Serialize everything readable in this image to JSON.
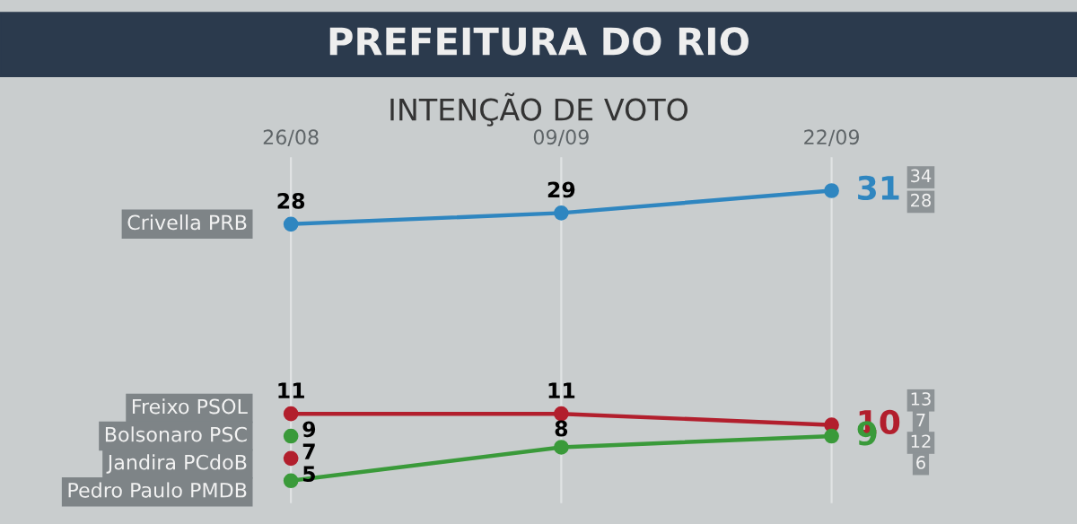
{
  "chart_data": {
    "type": "line",
    "title": "PREFEITURA DO RIO",
    "subtitle": "INTENÇÃO DE VOTO",
    "categories": [
      "26/08",
      "09/09",
      "22/09"
    ],
    "series": [
      {
        "name": "Crivella PRB",
        "color": "#2f86c0",
        "values": [
          28,
          29,
          31
        ]
      },
      {
        "name": "Freixo PSOL",
        "color": "#b21f2d",
        "values": [
          11,
          11,
          10
        ]
      },
      {
        "name": "Bolsonaro PSC",
        "color": "#3a9a3a",
        "values": [
          9,
          null,
          null
        ]
      },
      {
        "name": "Jandira PCdoB",
        "color": "#b21f2d",
        "values": [
          7,
          null,
          null
        ]
      },
      {
        "name": "Pedro Paulo PMDB",
        "color": "#3a9a3a",
        "values": [
          5,
          8,
          9
        ]
      }
    ],
    "annotations": [
      "34",
      "28",
      "13",
      "7",
      "12",
      "6"
    ],
    "ylim": [
      3,
      34
    ],
    "tick_labels": "x",
    "grid": "x",
    "marker": "circle",
    "data_labels": true,
    "legend": "left"
  }
}
